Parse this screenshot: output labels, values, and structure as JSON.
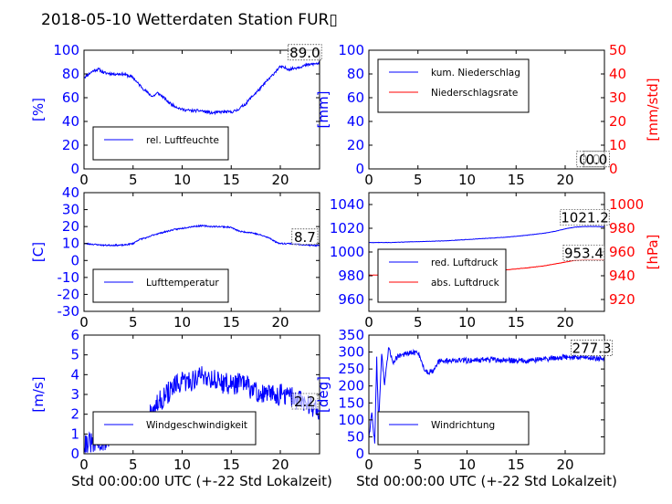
{
  "title": "2018-05-10 Wetterdaten Station FUR▯",
  "colors": {
    "primary": "#0000ff",
    "secondary": "#ff0000",
    "axis": "#000000",
    "legend_border": "#000000"
  },
  "shared_xlabel": "Std 00:00:00 UTC (+-22 Std Lokalzeit)",
  "chart_data": [
    {
      "id": "humidity",
      "type": "line",
      "xlim": [
        0,
        24
      ],
      "xticks": [
        0,
        5,
        10,
        15,
        20
      ],
      "ylim": [
        0,
        100
      ],
      "yticks": [
        0,
        20,
        40,
        60,
        80,
        100
      ],
      "ylabel": "[%]",
      "ylabel_color": "#0000ff",
      "ytick_color": "#0000ff",
      "show_xlabel": false,
      "annotations": [
        {
          "text": "89.0",
          "x": 22.5,
          "y": 94
        }
      ],
      "legend": {
        "position": "lower-left",
        "width": 148,
        "entries": [
          {
            "name": "rel. Luftfeuchte",
            "color": "#0000ff"
          }
        ]
      },
      "series": [
        {
          "name": "rel. Luftfeuchte",
          "color": "#0000ff",
          "axis": "left",
          "noise": 1.2,
          "seed": 11,
          "x": [
            0,
            0.5,
            1,
            1.5,
            2,
            3,
            4,
            5,
            5.5,
            6,
            6.5,
            7,
            7.5,
            8,
            8.5,
            9,
            9.5,
            10,
            11,
            12,
            13,
            14,
            15,
            15.5,
            16,
            16.5,
            17,
            17.5,
            18,
            18.5,
            19,
            19.5,
            20,
            21,
            22,
            23,
            24
          ],
          "y": [
            77,
            80,
            83,
            84,
            81,
            80,
            80,
            77,
            72,
            68,
            64,
            61,
            64,
            61,
            57,
            54,
            52,
            50,
            49,
            49,
            47,
            48,
            48,
            49,
            52,
            55,
            60,
            64,
            68,
            73,
            77,
            82,
            86,
            84,
            86,
            88,
            89
          ]
        }
      ]
    },
    {
      "id": "precip",
      "type": "line",
      "xlim": [
        0,
        24
      ],
      "xticks": [
        0,
        5,
        10,
        15,
        20
      ],
      "ylim": [
        0,
        100
      ],
      "yticks": [
        0,
        20,
        40,
        60,
        80,
        100
      ],
      "ylim2": [
        0,
        50
      ],
      "yticks2": [
        0,
        10,
        20,
        30,
        40,
        50
      ],
      "ylabel": "[mm]",
      "ylabel_color": "#0000ff",
      "ytick_color": "#0000ff",
      "ylabel2": "[mm/std]",
      "ylabel2_color": "#ff0000",
      "ytick2_color": "#ff0000",
      "show_xlabel": false,
      "annotations": [
        {
          "text": "0.0",
          "x": 22.5,
          "y": 4
        },
        {
          "text": "0.0",
          "x": 23.2,
          "y": 4
        }
      ],
      "legend": {
        "position": "upper-left",
        "width": 165,
        "entries": [
          {
            "name": "kum. Niederschlag",
            "color": "#0000ff"
          },
          {
            "name": "Niederschlagsrate",
            "color": "#ff0000"
          }
        ]
      },
      "series": [
        {
          "name": "kum. Niederschlag",
          "color": "#0000ff",
          "axis": "left",
          "noise": 0,
          "x": [
            0,
            24
          ],
          "y": [
            0,
            0
          ]
        },
        {
          "name": "Niederschlagsrate",
          "color": "#ff0000",
          "axis": "right",
          "noise": 0,
          "x": [
            0,
            24
          ],
          "y": [
            0,
            0
          ]
        }
      ]
    },
    {
      "id": "temperature",
      "type": "line",
      "xlim": [
        0,
        24
      ],
      "xticks": [
        0,
        5,
        10,
        15,
        20
      ],
      "ylim": [
        -30,
        40
      ],
      "yticks": [
        -30,
        -20,
        -10,
        0,
        10,
        20,
        30,
        40
      ],
      "ylabel": "[C]",
      "ylabel_color": "#0000ff",
      "ytick_color": "#0000ff",
      "show_xlabel": false,
      "annotations": [
        {
          "text": "8.7",
          "x": 22.5,
          "y": 11
        }
      ],
      "legend": {
        "position": "lower-left",
        "width": 148,
        "entries": [
          {
            "name": "Lufttemperatur",
            "color": "#0000ff"
          }
        ]
      },
      "series": [
        {
          "name": "Lufttemperatur",
          "color": "#0000ff",
          "axis": "left",
          "noise": 0.4,
          "seed": 23,
          "x": [
            0,
            1,
            2,
            3,
            4,
            4.5,
            5,
            5.5,
            6,
            6.5,
            7,
            8,
            9,
            10,
            11,
            12,
            13,
            14,
            15,
            15.5,
            16,
            17,
            18,
            19,
            19.5,
            20,
            21,
            22,
            23,
            24
          ],
          "y": [
            10,
            9.5,
            9,
            9,
            9,
            9.5,
            10,
            12,
            13,
            13.5,
            15,
            16.5,
            18,
            19,
            20,
            20.5,
            20,
            20,
            19.5,
            18,
            17,
            16.5,
            15,
            13,
            11,
            10,
            10,
            9.5,
            9,
            8.7
          ]
        }
      ]
    },
    {
      "id": "pressure",
      "type": "line",
      "xlim": [
        0,
        24
      ],
      "xticks": [
        0,
        5,
        10,
        15,
        20
      ],
      "ylim": [
        950,
        1050
      ],
      "yticks": [
        960,
        980,
        1000,
        1020,
        1040
      ],
      "ylim2": [
        910,
        1010
      ],
      "yticks2": [
        920,
        940,
        960,
        980,
        1000
      ],
      "ylabel": "",
      "ylabel2": "[hPa]",
      "ylabel2_color": "#ff0000",
      "ytick_color": "#0000ff",
      "ytick2_color": "#ff0000",
      "show_xlabel": false,
      "annotations": [
        {
          "text": "1021.2",
          "x": 22,
          "y": 1025
        },
        {
          "text": "953.4",
          "x": 21.9,
          "y": 995
        }
      ],
      "legend": {
        "position": "lower-left",
        "width": 140,
        "entries": [
          {
            "name": "red. Luftdruck",
            "color": "#0000ff"
          },
          {
            "name": "abs. Luftdruck",
            "color": "#ff0000"
          }
        ]
      },
      "series": [
        {
          "name": "red. Luftdruck",
          "color": "#0000ff",
          "axis": "left",
          "noise": 0.15,
          "seed": 5,
          "x": [
            0,
            2,
            4,
            6,
            8,
            10,
            12,
            14,
            16,
            17,
            18,
            19,
            20,
            21,
            22,
            23,
            24
          ],
          "y": [
            1008,
            1008,
            1008.5,
            1009,
            1009.5,
            1010.5,
            1011.5,
            1012.5,
            1014,
            1015,
            1016,
            1017.5,
            1019.5,
            1021,
            1021.5,
            1021.5,
            1021.2
          ]
        },
        {
          "name": "abs. Luftdruck",
          "color": "#ff0000",
          "axis": "right",
          "noise": 0.15,
          "seed": 7,
          "x": [
            0,
            2,
            4,
            6,
            8,
            10,
            12,
            14,
            16,
            17,
            18,
            19,
            20,
            21,
            22,
            23,
            24
          ],
          "y": [
            940.5,
            940.6,
            941,
            941.5,
            942,
            943,
            944,
            945,
            946.5,
            947.5,
            948.5,
            950,
            951.5,
            953,
            953.5,
            953.5,
            953.4
          ]
        }
      ]
    },
    {
      "id": "wind-speed",
      "type": "line",
      "xlim": [
        0,
        24
      ],
      "xticks": [
        0,
        5,
        10,
        15,
        20
      ],
      "ylim": [
        0,
        6
      ],
      "yticks": [
        0,
        1,
        2,
        3,
        4,
        5,
        6
      ],
      "ylabel": "[m/s]",
      "ylabel_color": "#0000ff",
      "ytick_color": "#0000ff",
      "show_xlabel": true,
      "annotations": [
        {
          "text": "2.2",
          "x": 22.5,
          "y": 2.4
        }
      ],
      "legend": {
        "position": "lower-left",
        "width": 178,
        "entries": [
          {
            "name": "Windgeschwindigkeit",
            "color": "#0000ff"
          }
        ]
      },
      "series": [
        {
          "name": "Windgeschwindigkeit",
          "color": "#0000ff",
          "axis": "left",
          "noise": 0.55,
          "seed": 31,
          "x": [
            0,
            1,
            2,
            3,
            4,
            5,
            5.5,
            6,
            6.5,
            7,
            8,
            9,
            10,
            11,
            12,
            13,
            14,
            15,
            16,
            17,
            18,
            19,
            20,
            21,
            22,
            23,
            24
          ],
          "y": [
            0.6,
            0.5,
            0.6,
            1.0,
            1.2,
            1.1,
            0.8,
            1.2,
            1.7,
            2.2,
            2.8,
            3.3,
            3.6,
            3.7,
            4.0,
            3.8,
            3.6,
            3.5,
            3.6,
            3.3,
            3.0,
            3.0,
            3.0,
            2.9,
            2.7,
            2.5,
            2.2
          ]
        }
      ]
    },
    {
      "id": "wind-direction",
      "type": "line",
      "xlim": [
        0,
        24
      ],
      "xticks": [
        0,
        5,
        10,
        15,
        20
      ],
      "ylim": [
        0,
        350
      ],
      "yticks": [
        0,
        50,
        100,
        150,
        200,
        250,
        300,
        350
      ],
      "ylabel": "[deg]",
      "ylabel_color": "#0000ff",
      "ytick_color": "#0000ff",
      "show_xlabel": true,
      "annotations": [
        {
          "text": "277.3",
          "x": 22.7,
          "y": 297
        }
      ],
      "legend": {
        "position": "lower-left",
        "width": 165,
        "entries": [
          {
            "name": "Windrichtung",
            "color": "#0000ff"
          }
        ]
      },
      "series": [
        {
          "name": "Windrichtung",
          "color": "#0000ff",
          "axis": "left",
          "noise": 8,
          "seed": 47,
          "x": [
            0,
            0.3,
            0.6,
            0.8,
            1.0,
            1.3,
            1.6,
            2.0,
            2.5,
            3,
            4,
            5,
            5.3,
            5.6,
            6,
            6.5,
            7,
            8,
            10,
            12,
            14,
            16,
            18,
            20,
            22,
            24
          ],
          "y": [
            50,
            120,
            30,
            280,
            80,
            300,
            200,
            310,
            270,
            290,
            295,
            300,
            280,
            250,
            240,
            245,
            270,
            275,
            275,
            278,
            275,
            275,
            280,
            285,
            285,
            280
          ]
        }
      ]
    }
  ]
}
